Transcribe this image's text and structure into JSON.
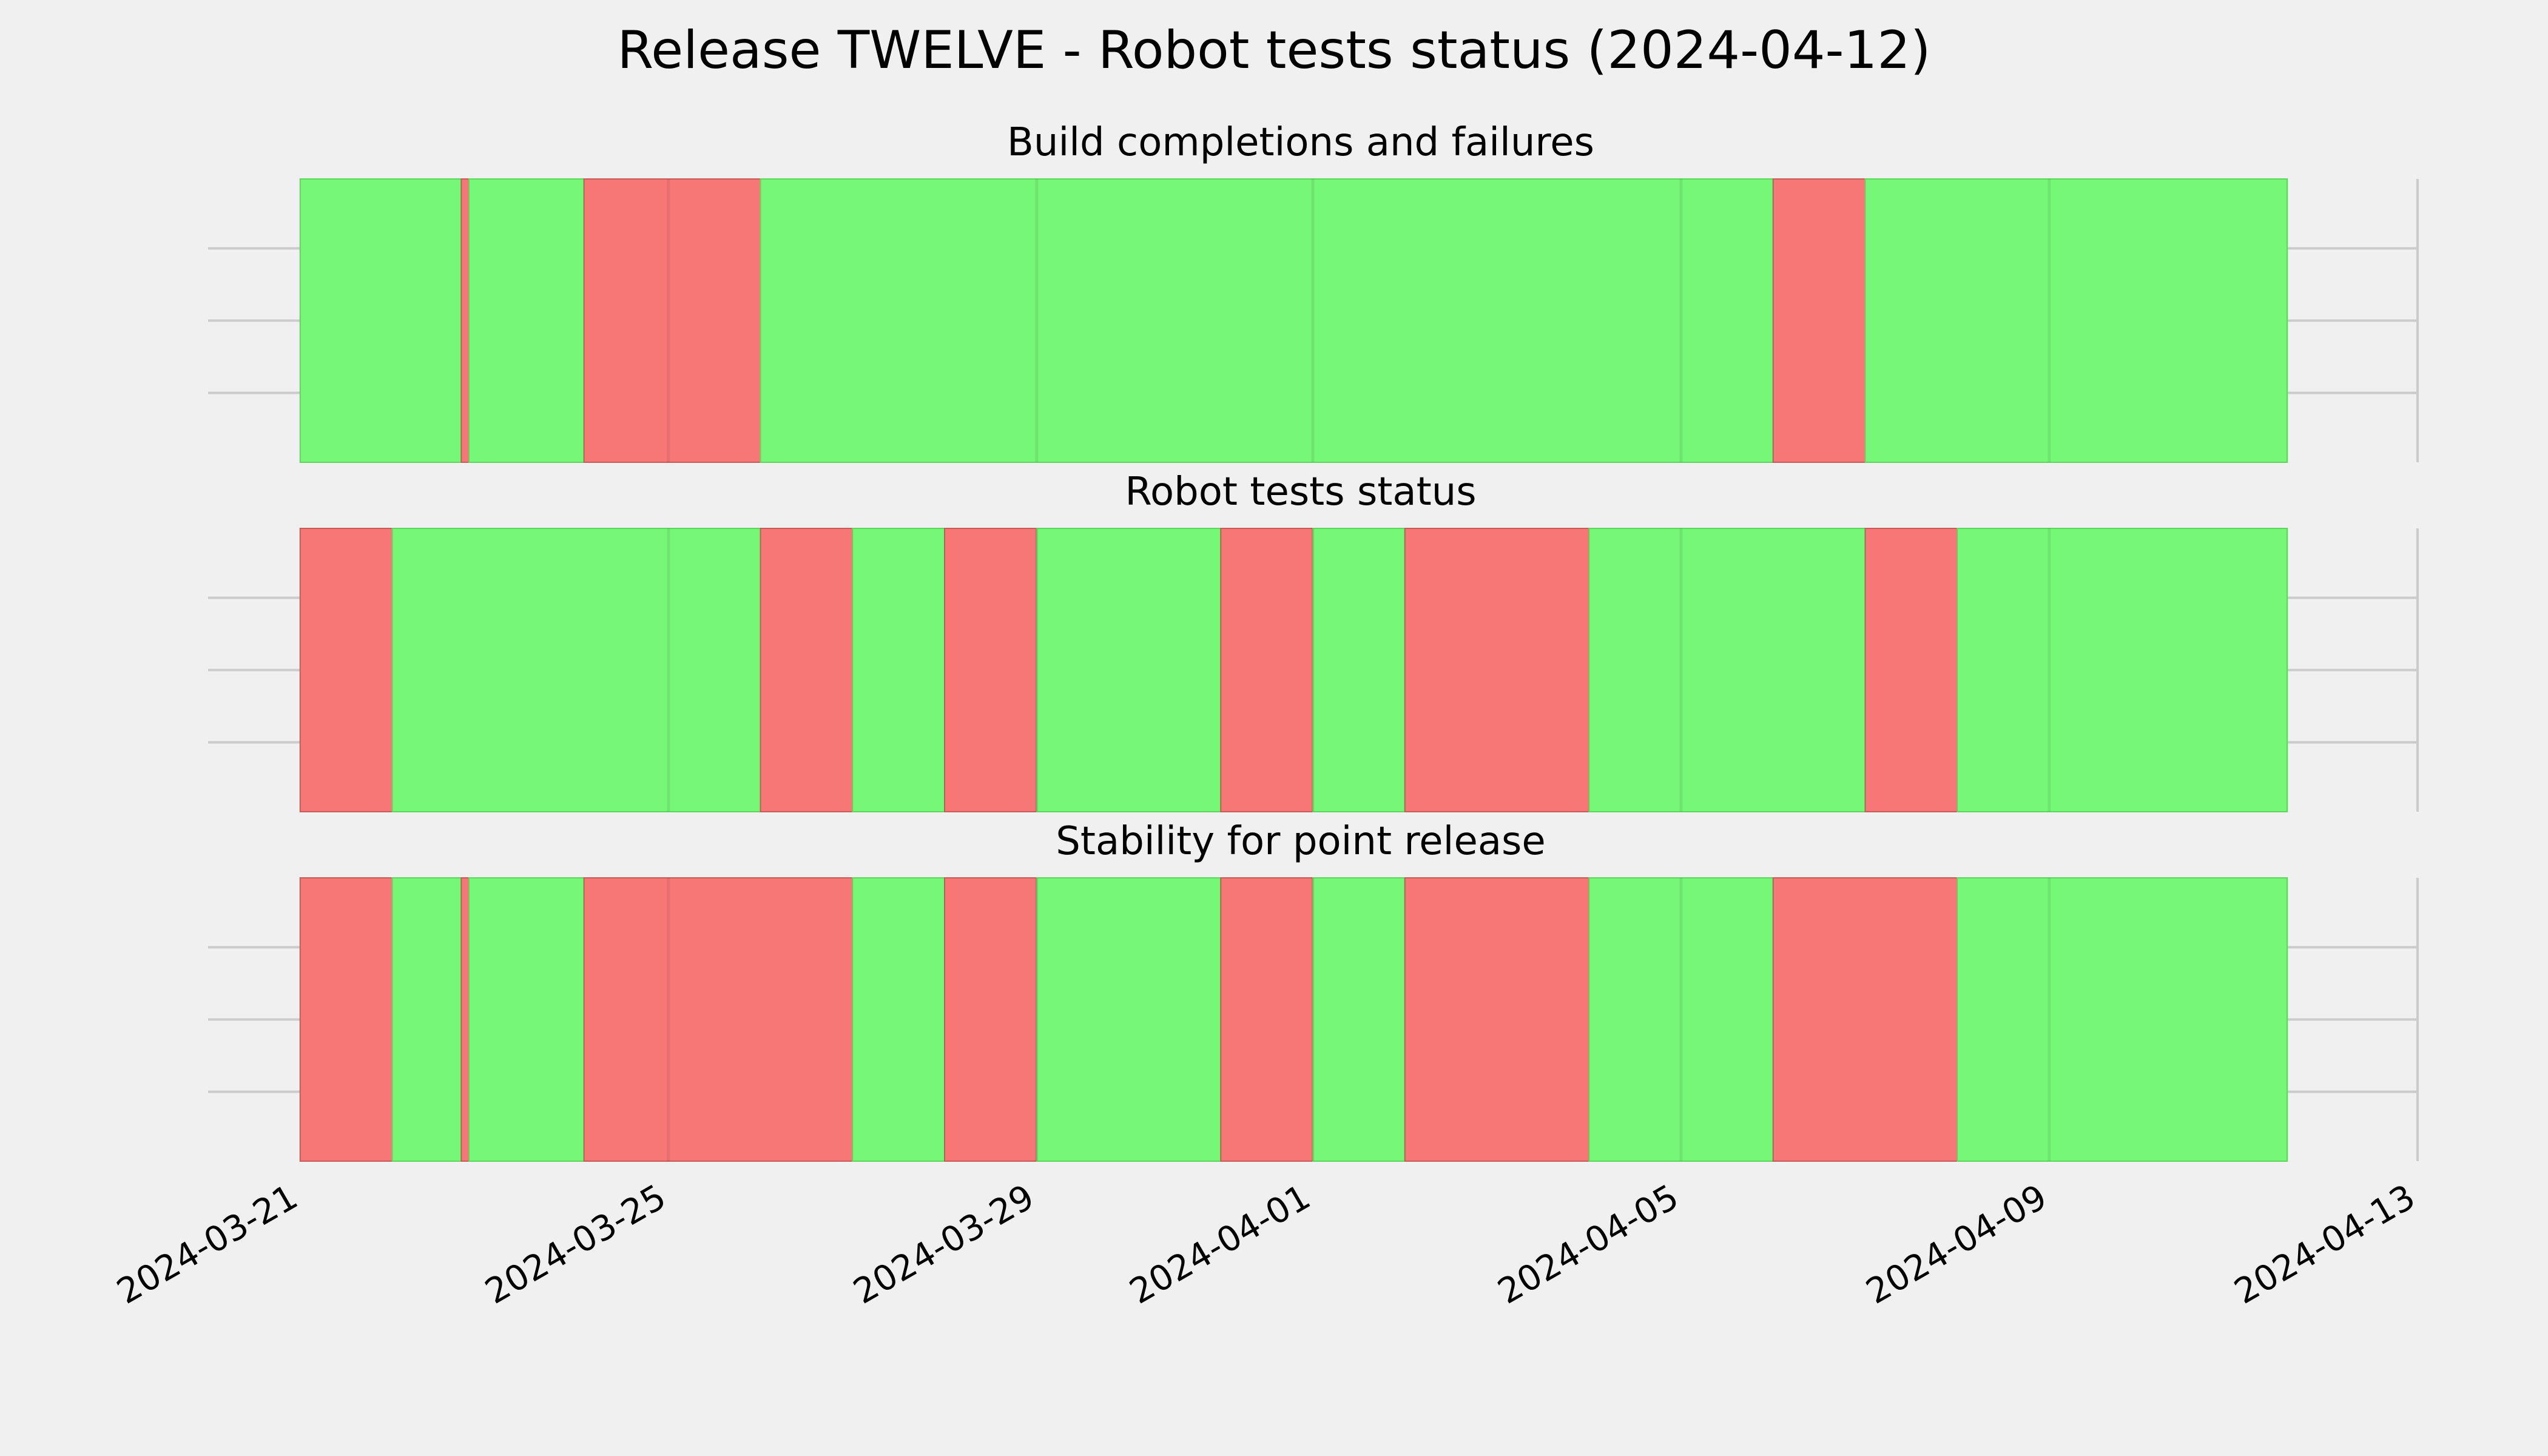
{
  "chart_data": {
    "type": "timeline",
    "title": "Release TWELVE - Robot tests status (2024-04-12)",
    "x_ticks": [
      "2024-03-21",
      "2024-03-25",
      "2024-03-29",
      "2024-04-01",
      "2024-04-05",
      "2024-04-09",
      "2024-04-13"
    ],
    "x_range": [
      "2024-03-20T00:00",
      "2024-04-13T00:00"
    ],
    "colors": {
      "pass": "#77f777",
      "fail": "#f77777",
      "background": "#f0f0f0",
      "grid": "#cbcbcb"
    },
    "panels": [
      {
        "title": "Build completions and failures",
        "segments": [
          {
            "start": "2024-03-21T00:00",
            "end": "2024-03-22T18:00",
            "status": "pass"
          },
          {
            "start": "2024-03-22T18:00",
            "end": "2024-03-22T20:00",
            "status": "fail"
          },
          {
            "start": "2024-03-22T20:00",
            "end": "2024-03-24T02:00",
            "status": "pass"
          },
          {
            "start": "2024-03-24T02:00",
            "end": "2024-03-26T00:00",
            "status": "fail"
          },
          {
            "start": "2024-03-26T00:00",
            "end": "2024-04-06T00:00",
            "status": "pass"
          },
          {
            "start": "2024-04-06T00:00",
            "end": "2024-04-07T00:00",
            "status": "fail"
          },
          {
            "start": "2024-04-07T00:00",
            "end": "2024-04-11T14:00",
            "status": "pass"
          }
        ]
      },
      {
        "title": "Robot tests status",
        "segments": [
          {
            "start": "2024-03-21T00:00",
            "end": "2024-03-22T00:00",
            "status": "fail"
          },
          {
            "start": "2024-03-22T00:00",
            "end": "2024-03-26T00:00",
            "status": "pass"
          },
          {
            "start": "2024-03-26T00:00",
            "end": "2024-03-27T00:00",
            "status": "fail"
          },
          {
            "start": "2024-03-27T00:00",
            "end": "2024-03-28T00:00",
            "status": "pass"
          },
          {
            "start": "2024-03-28T00:00",
            "end": "2024-03-29T00:00",
            "status": "fail"
          },
          {
            "start": "2024-03-29T00:00",
            "end": "2024-03-31T00:00",
            "status": "pass"
          },
          {
            "start": "2024-03-31T00:00",
            "end": "2024-04-01T00:00",
            "status": "fail"
          },
          {
            "start": "2024-04-01T00:00",
            "end": "2024-04-02T00:00",
            "status": "pass"
          },
          {
            "start": "2024-04-02T00:00",
            "end": "2024-04-04T00:00",
            "status": "fail"
          },
          {
            "start": "2024-04-04T00:00",
            "end": "2024-04-07T00:00",
            "status": "pass"
          },
          {
            "start": "2024-04-07T00:00",
            "end": "2024-04-08T00:00",
            "status": "fail"
          },
          {
            "start": "2024-04-08T00:00",
            "end": "2024-04-11T14:00",
            "status": "pass"
          }
        ]
      },
      {
        "title": "Stability for point release",
        "segments": [
          {
            "start": "2024-03-21T00:00",
            "end": "2024-03-22T00:00",
            "status": "fail"
          },
          {
            "start": "2024-03-22T00:00",
            "end": "2024-03-22T18:00",
            "status": "pass"
          },
          {
            "start": "2024-03-22T18:00",
            "end": "2024-03-22T20:00",
            "status": "fail"
          },
          {
            "start": "2024-03-22T20:00",
            "end": "2024-03-24T02:00",
            "status": "pass"
          },
          {
            "start": "2024-03-24T02:00",
            "end": "2024-03-27T00:00",
            "status": "fail"
          },
          {
            "start": "2024-03-27T00:00",
            "end": "2024-03-28T00:00",
            "status": "pass"
          },
          {
            "start": "2024-03-28T00:00",
            "end": "2024-03-29T00:00",
            "status": "fail"
          },
          {
            "start": "2024-03-29T00:00",
            "end": "2024-03-31T00:00",
            "status": "pass"
          },
          {
            "start": "2024-03-31T00:00",
            "end": "2024-04-01T00:00",
            "status": "fail"
          },
          {
            "start": "2024-04-01T00:00",
            "end": "2024-04-02T00:00",
            "status": "pass"
          },
          {
            "start": "2024-04-02T00:00",
            "end": "2024-04-04T00:00",
            "status": "fail"
          },
          {
            "start": "2024-04-04T00:00",
            "end": "2024-04-06T00:00",
            "status": "pass"
          },
          {
            "start": "2024-04-06T00:00",
            "end": "2024-04-08T00:00",
            "status": "fail"
          },
          {
            "start": "2024-04-08T00:00",
            "end": "2024-04-11T14:00",
            "status": "pass"
          }
        ]
      }
    ]
  }
}
